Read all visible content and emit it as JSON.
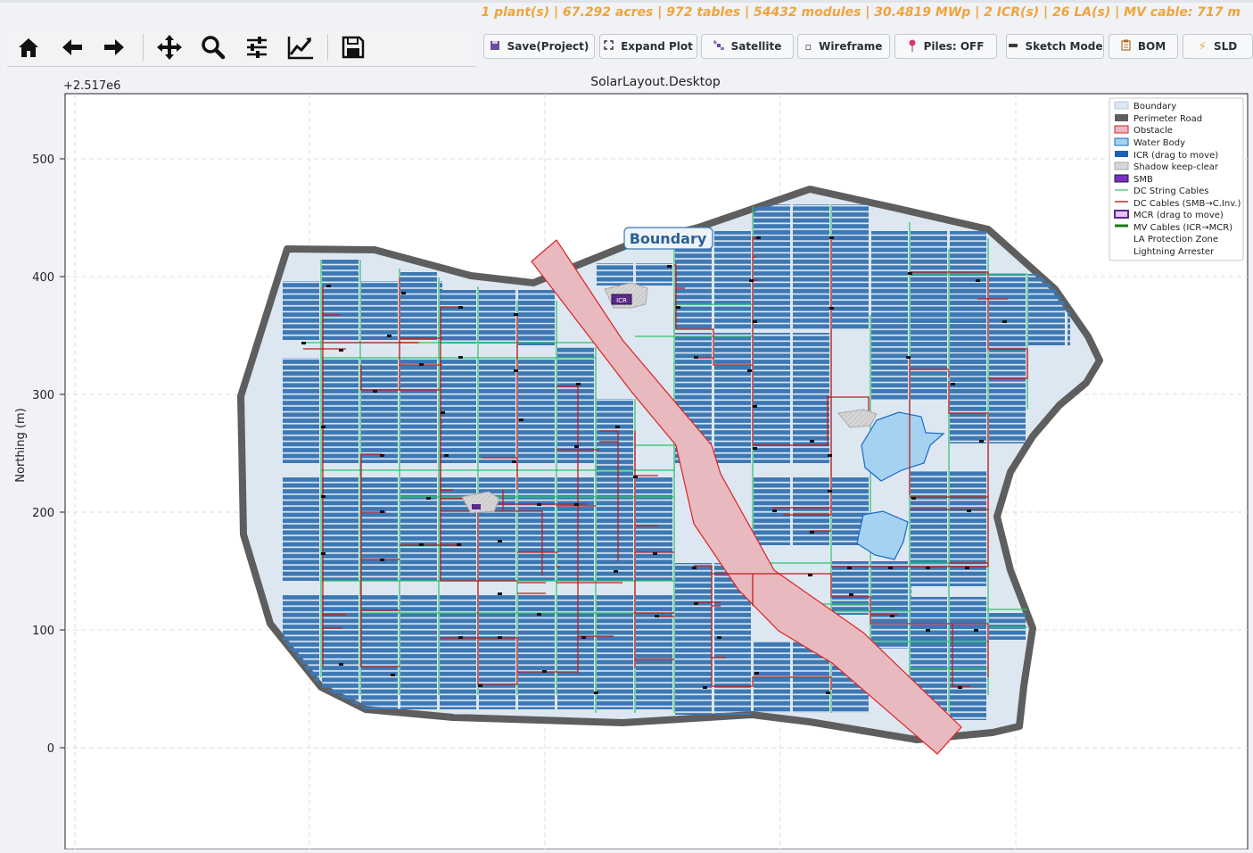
{
  "stats": "1 plant(s) | 67.292 acres | 972 tables | 54432 modules | 30.4819 MWp | 2 ICR(s) | 26 LA(s) | MV cable: 717 m",
  "toolbar": {
    "icons": [
      "home-icon",
      "back-arrow-icon",
      "forward-arrow-icon",
      "pan-icon",
      "zoom-icon",
      "configure-subplots-icon",
      "edit-axis-icon",
      "save-figure-icon"
    ]
  },
  "buttons": {
    "save": "Save(Project)",
    "expand": "Expand Plot",
    "satellite": "Satellite",
    "wireframe": "Wireframe",
    "piles": "Piles: OFF",
    "sketch": "Sketch Mode",
    "bom": "BOM",
    "sld": "SLD"
  },
  "plot": {
    "title": "SolarLayout.Desktop",
    "offset_label": "+2.517e6",
    "ylabel": "Northing (m)",
    "yticks": [
      "500",
      "400",
      "300",
      "200",
      "100",
      "0"
    ],
    "boundary_label": "Boundary",
    "icr_label": "ICR",
    "legend": [
      "Boundary",
      "Perimeter Road",
      "Obstacle",
      "Water Body",
      "ICR (drag to move)",
      "Shadow keep-clear",
      "SMB",
      "DC String Cables",
      "DC Cables (SMB→C.Inv.)",
      "MCR (drag to move)",
      "MV Cables (ICR→MCR)",
      "LA Protection Zone",
      "Lightning Arrester"
    ]
  },
  "colors": {
    "accent_orange": "#f0a43a",
    "module": "#3c78b4",
    "boundary_fill": "#dde7f1",
    "road": "#5e5e5e",
    "obstacle_fill": "#e9b9c0",
    "obstacle_edge": "#e02020",
    "water": "#a6d2f2",
    "dc_string": "#2ec26a",
    "dc_cable": "#c01d1d"
  }
}
